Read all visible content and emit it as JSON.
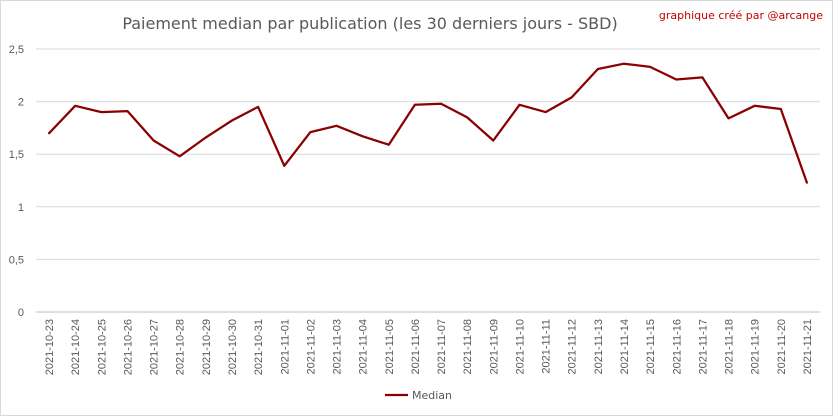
{
  "chart_data": {
    "type": "line",
    "title": "Paiement median par publication (les 30 derniers jours - SBD)",
    "credit": "graphique créé par @arcange",
    "xlabel": "",
    "ylabel": "",
    "ylim": [
      0,
      2.5
    ],
    "yticks": [
      "0",
      "0,5",
      "1",
      "1,5",
      "2",
      "2,5"
    ],
    "ytick_values": [
      0,
      0.5,
      1,
      1.5,
      2,
      2.5
    ],
    "grid": true,
    "legend_position": "bottom",
    "categories": [
      "2021-10-23",
      "2021-10-24",
      "2021-10-25",
      "2021-10-26",
      "2021-10-27",
      "2021-10-28",
      "2021-10-29",
      "2021-10-30",
      "2021-10-31",
      "2021-11-01",
      "2021-11-02",
      "2021-11-03",
      "2021-11-04",
      "2021-11-05",
      "2021-11-06",
      "2021-11-07",
      "2021-11-08",
      "2021-11-09",
      "2021-11-10",
      "2021-11-11",
      "2021-11-12",
      "2021-11-13",
      "2021-11-14",
      "2021-11-15",
      "2021-11-16",
      "2021-11-17",
      "2021-11-18",
      "2021-11-19",
      "2021-11-20",
      "2021-11-21"
    ],
    "series": [
      {
        "name": "Median",
        "color": "#8b0000",
        "values": [
          1.7,
          1.96,
          1.9,
          1.91,
          1.63,
          1.48,
          1.66,
          1.82,
          1.95,
          1.39,
          1.71,
          1.77,
          1.67,
          1.59,
          1.97,
          1.98,
          1.85,
          1.63,
          1.97,
          1.9,
          2.04,
          2.31,
          2.36,
          2.33,
          2.21,
          2.23,
          1.84,
          1.96,
          1.93,
          1.23
        ]
      }
    ]
  }
}
